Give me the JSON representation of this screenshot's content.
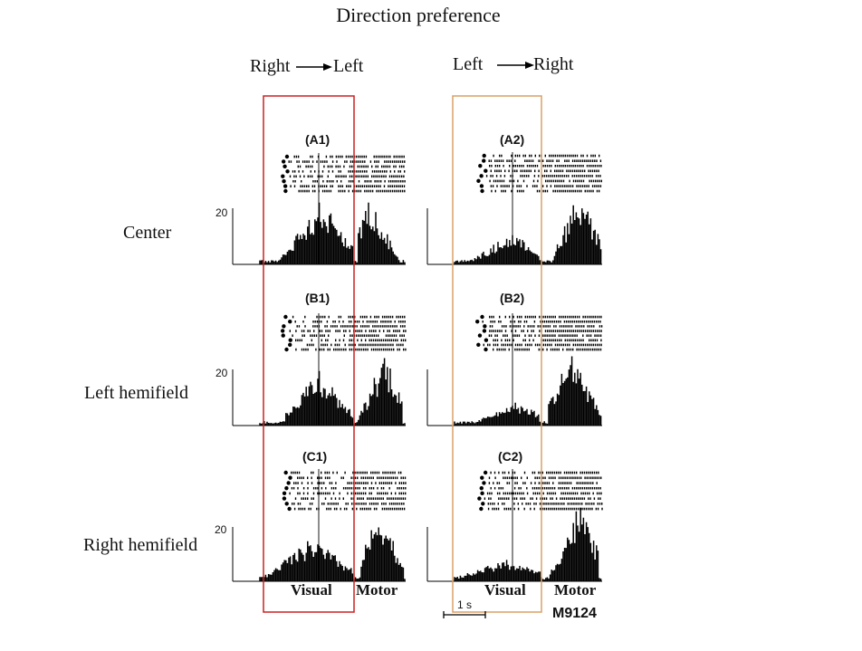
{
  "title": "Direction preference",
  "columns": [
    {
      "direction_from": "Right",
      "direction_to": "Left",
      "box_color": "#cc2020"
    },
    {
      "direction_from": "Left",
      "direction_to": "Right",
      "box_color": "#d9a066"
    }
  ],
  "rows": [
    "Center",
    "Left hemifield",
    "Right hemifield"
  ],
  "panels": [
    "(A1)",
    "(A2)",
    "(B1)",
    "(B2)",
    "(C1)",
    "(C2)"
  ],
  "scale_value": "20",
  "epoch_labels": {
    "left_visual": "Visual",
    "left_motor": "Motor",
    "right_visual": "Visual",
    "right_motor": "Motor"
  },
  "time_scale_label": "1 s",
  "monkey_id": "M9124"
}
